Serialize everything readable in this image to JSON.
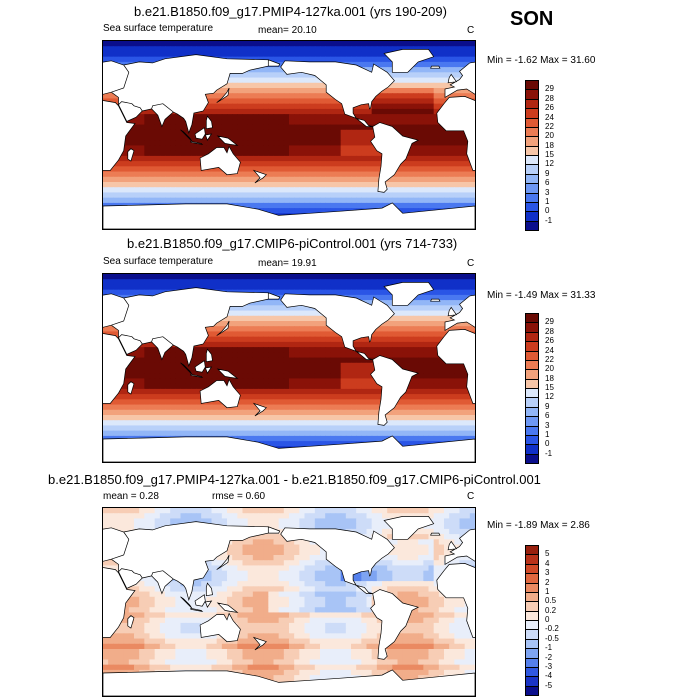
{
  "season": "SON",
  "colors": {
    "abs_scale": [
      "#0a0e8c",
      "#1030c8",
      "#2a55e6",
      "#4a78f0",
      "#6e98f4",
      "#92b6f7",
      "#b8d0f9",
      "#dce8fb",
      "#fbe6d8",
      "#f7c6a8",
      "#f2a27c",
      "#ec7c54",
      "#e05a34",
      "#cc3c1e",
      "#b02612",
      "#8a1208",
      "#6a0a04"
    ],
    "diff_scale": [
      "#0a0e8c",
      "#1a34c6",
      "#3058e0",
      "#5580ec",
      "#7ea4f2",
      "#a8c4f6",
      "#cddcf8",
      "#e8eefa",
      "#fbe8dc",
      "#f7cdb5",
      "#f1ad8a",
      "#ea8a62",
      "#e06840",
      "#d04a28",
      "#b8321a",
      "#98200e"
    ]
  },
  "chart_data": [
    {
      "type": "heatmap",
      "title": "b.e21.B1850.f09_g17.PMIP4-127ka.001 (yrs 190-209)",
      "variable": "Sea surface temperature",
      "units": "C",
      "mean_label": "mean=",
      "mean": "20.10",
      "min_label": "Min =",
      "min": "-1.62",
      "max_label": "Max =",
      "max": "31.60",
      "colorbar_levels": [
        "29",
        "28",
        "26",
        "24",
        "22",
        "20",
        "18",
        "15",
        "12",
        "9",
        "6",
        "3",
        "1",
        "0",
        "-1"
      ]
    },
    {
      "type": "heatmap",
      "title": "b.e21.B1850.f09_g17.CMIP6-piControl.001 (yrs 714-733)",
      "variable": "Sea surface temperature",
      "units": "C",
      "mean_label": "mean=",
      "mean": "19.91",
      "min_label": "Min =",
      "min": "-1.49",
      "max_label": "Max =",
      "max": "31.33",
      "colorbar_levels": [
        "29",
        "28",
        "26",
        "24",
        "22",
        "20",
        "18",
        "15",
        "12",
        "9",
        "6",
        "3",
        "1",
        "0",
        "-1"
      ]
    },
    {
      "type": "heatmap",
      "title": "b.e21.B1850.f09_g17.PMIP4-127ka.001 - b.e21.B1850.f09_g17.CMIP6-piControl.001",
      "units": "C",
      "mean_label": "mean =",
      "mean": "0.28",
      "rmse_label": "rmse =",
      "rmse": "0.60",
      "min_label": "Min =",
      "min": "-1.89",
      "max_label": "Max =",
      "max": "2.86",
      "colorbar_levels": [
        "5",
        "4",
        "3",
        "2",
        "1",
        "0.5",
        "0.2",
        "0",
        "-0.2",
        "-0.5",
        "-1",
        "-2",
        "-3",
        "-4",
        "-5"
      ]
    }
  ]
}
